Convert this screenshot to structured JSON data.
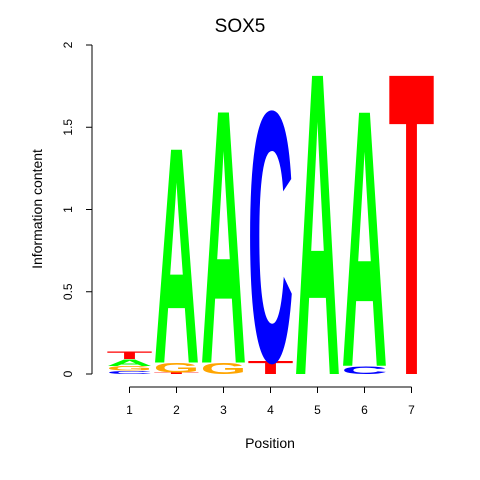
{
  "chart_data": {
    "type": "sequence-logo",
    "title": "SOX5",
    "xlabel": "Position",
    "ylabel": "Information content",
    "ylim": [
      0,
      2
    ],
    "yticks": [
      0,
      0.5,
      1,
      1.5,
      2
    ],
    "ytick_labels": [
      "0",
      "0.5",
      "1",
      "1.5",
      "2"
    ],
    "xticks": [
      1,
      2,
      3,
      4,
      5,
      6,
      7
    ],
    "xtick_labels": [
      "1",
      "2",
      "3",
      "4",
      "5",
      "6",
      "7"
    ],
    "grid": false,
    "legend": "none",
    "colors": {
      "A": "#00ff00",
      "C": "#0000ff",
      "G": "#ffa500",
      "T": "#ff0000"
    },
    "positions": [
      {
        "position": 1,
        "letters": [
          {
            "base": "C",
            "height": 0.02
          },
          {
            "base": "G",
            "height": 0.03
          },
          {
            "base": "A",
            "height": 0.04
          },
          {
            "base": "T",
            "height": 0.05
          }
        ]
      },
      {
        "position": 2,
        "letters": [
          {
            "base": "T",
            "height": 0.01
          },
          {
            "base": "G",
            "height": 0.06
          },
          {
            "base": "A",
            "height": 1.37
          }
        ]
      },
      {
        "position": 3,
        "letters": [
          {
            "base": "G",
            "height": 0.07
          },
          {
            "base": "A",
            "height": 1.61
          }
        ]
      },
      {
        "position": 4,
        "letters": [
          {
            "base": "T",
            "height": 0.08
          },
          {
            "base": "C",
            "height": 1.59
          }
        ]
      },
      {
        "position": 5,
        "letters": [
          {
            "base": "A",
            "height": 1.92
          }
        ]
      },
      {
        "position": 6,
        "letters": [
          {
            "base": "C",
            "height": 0.05
          },
          {
            "base": "A",
            "height": 1.63
          }
        ]
      },
      {
        "position": 7,
        "letters": [
          {
            "base": "T",
            "height": 1.92
          }
        ]
      }
    ]
  }
}
